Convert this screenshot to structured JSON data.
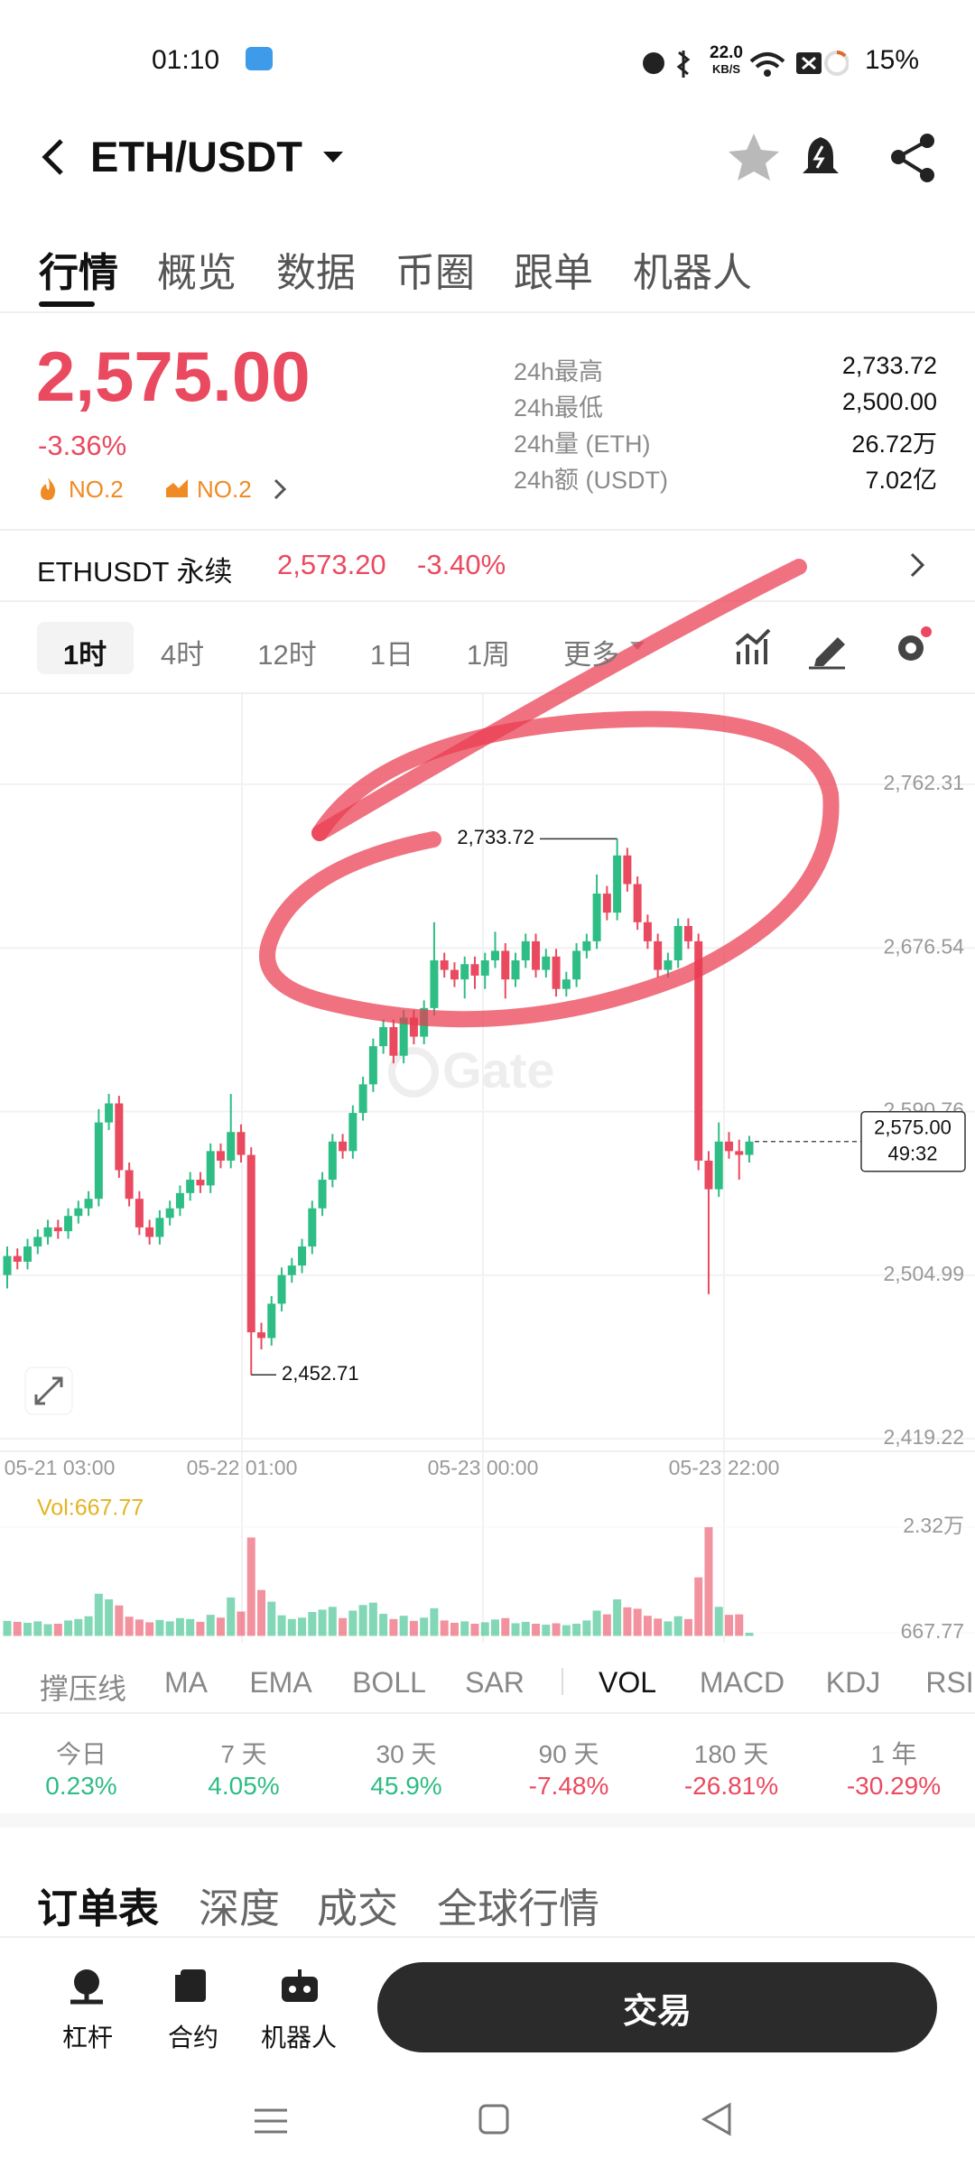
{
  "status_bar": {
    "time": "01:10",
    "net_speed": "22.0",
    "net_unit": "KB/S",
    "battery": "15%"
  },
  "header": {
    "pair": "ETH/USDT"
  },
  "tabs": [
    "行情",
    "概览",
    "数据",
    "币圈",
    "跟单",
    "机器人"
  ],
  "price": {
    "last": "2,575.00",
    "change": "-3.36%",
    "ranks": [
      "NO.2",
      "NO.2"
    ]
  },
  "stats": [
    {
      "label": "24h最高",
      "value": "2,733.72"
    },
    {
      "label": "24h最低",
      "value": "2,500.00"
    },
    {
      "label": "24h量 (ETH)",
      "value": "26.72万"
    },
    {
      "label": "24h额 (USDT)",
      "value": "7.02亿"
    }
  ],
  "perpetual": {
    "name": "ETHUSDT 永续",
    "price": "2,573.20",
    "change": "-3.40%"
  },
  "intervals": [
    "1时",
    "4时",
    "12时",
    "1日",
    "1周",
    "更多"
  ],
  "chart": {
    "type": "candlestick",
    "watermark": "Gate",
    "up_color": "#2ebd85",
    "down_color": "#ea4a5f",
    "ylim": [
      2412.6,
      2809.6
    ],
    "yticks": [
      {
        "value": 2762.31,
        "label": "2,762.31"
      },
      {
        "value": 2676.54,
        "label": "2,676.54"
      },
      {
        "value": 2590.76,
        "label": "2,590.76"
      },
      {
        "value": 2504.99,
        "label": "2,504.99"
      },
      {
        "value": 2419.22,
        "label": "2,419.22"
      }
    ],
    "xlabels": [
      "05-21 03:00",
      "05-22 01:00",
      "05-23 00:00",
      "05-23 22:00"
    ],
    "high_label": {
      "value": 2733.72,
      "label": "2,733.72"
    },
    "low_label": {
      "value": 2452.71,
      "label": "2,452.71"
    },
    "last_price": {
      "value": 2575,
      "label": "2,575.00"
    },
    "countdown": "49:32",
    "ohlc": [
      [
        2505,
        2520,
        2498,
        2515
      ],
      [
        2515,
        2519,
        2508,
        2512
      ],
      [
        2512,
        2524,
        2508,
        2520
      ],
      [
        2520,
        2529,
        2516,
        2525
      ],
      [
        2525,
        2534,
        2521,
        2530
      ],
      [
        2530,
        2534,
        2524,
        2528
      ],
      [
        2528,
        2540,
        2524,
        2536
      ],
      [
        2536,
        2544,
        2532,
        2540
      ],
      [
        2540,
        2549,
        2536,
        2545
      ],
      [
        2545,
        2592,
        2541,
        2585
      ],
      [
        2585,
        2600,
        2581,
        2595
      ],
      [
        2595,
        2599,
        2556,
        2560
      ],
      [
        2560,
        2564,
        2541,
        2545
      ],
      [
        2545,
        2549,
        2526,
        2530
      ],
      [
        2530,
        2534,
        2521,
        2525
      ],
      [
        2525,
        2539,
        2521,
        2535
      ],
      [
        2535,
        2544,
        2531,
        2540
      ],
      [
        2540,
        2552,
        2536,
        2548
      ],
      [
        2548,
        2559,
        2544,
        2555
      ],
      [
        2555,
        2559,
        2548,
        2552
      ],
      [
        2552,
        2574,
        2548,
        2570
      ],
      [
        2570,
        2574,
        2561,
        2565
      ],
      [
        2565,
        2600,
        2561,
        2580
      ],
      [
        2580,
        2584,
        2564,
        2568
      ],
      [
        2568,
        2572,
        2452.71,
        2475
      ],
      [
        2475,
        2480,
        2466,
        2472
      ],
      [
        2472,
        2494,
        2468,
        2490
      ],
      [
        2490,
        2509,
        2486,
        2505
      ],
      [
        2505,
        2514,
        2501,
        2510
      ],
      [
        2510,
        2524,
        2506,
        2520
      ],
      [
        2520,
        2544,
        2516,
        2540
      ],
      [
        2540,
        2559,
        2536,
        2555
      ],
      [
        2555,
        2579,
        2551,
        2575
      ],
      [
        2575,
        2579,
        2566,
        2570
      ],
      [
        2570,
        2594,
        2566,
        2590
      ],
      [
        2590,
        2609,
        2586,
        2605
      ],
      [
        2605,
        2629,
        2601,
        2625
      ],
      [
        2625,
        2639,
        2621,
        2635
      ],
      [
        2635,
        2639,
        2616,
        2620
      ],
      [
        2620,
        2644,
        2616,
        2640
      ],
      [
        2640,
        2644,
        2626,
        2630
      ],
      [
        2630,
        2649,
        2626,
        2645
      ],
      [
        2645,
        2690,
        2641,
        2670
      ],
      [
        2670,
        2674,
        2661,
        2665
      ],
      [
        2665,
        2669,
        2656,
        2660
      ],
      [
        2660,
        2672,
        2650,
        2668
      ],
      [
        2668,
        2672,
        2655,
        2662
      ],
      [
        2662,
        2674,
        2655,
        2670
      ],
      [
        2670,
        2685,
        2666,
        2675
      ],
      [
        2675,
        2679,
        2650,
        2660
      ],
      [
        2660,
        2674,
        2656,
        2670
      ],
      [
        2670,
        2684,
        2666,
        2680
      ],
      [
        2680,
        2684,
        2661,
        2665
      ],
      [
        2665,
        2676,
        2661,
        2672
      ],
      [
        2672,
        2676,
        2651,
        2655
      ],
      [
        2655,
        2664,
        2651,
        2660
      ],
      [
        2660,
        2679,
        2656,
        2675
      ],
      [
        2675,
        2684,
        2671,
        2680
      ],
      [
        2680,
        2715,
        2676,
        2705
      ],
      [
        2705,
        2709,
        2691,
        2695
      ],
      [
        2695,
        2733.72,
        2691,
        2725
      ],
      [
        2725,
        2729,
        2706,
        2710
      ],
      [
        2710,
        2714,
        2686,
        2690
      ],
      [
        2690,
        2694,
        2676,
        2680
      ],
      [
        2680,
        2684,
        2661,
        2665
      ],
      [
        2665,
        2674,
        2661,
        2670
      ],
      [
        2670,
        2692,
        2666,
        2688
      ],
      [
        2688,
        2692,
        2676,
        2680
      ],
      [
        2680,
        2684,
        2560,
        2565
      ],
      [
        2565,
        2570,
        2495,
        2550
      ],
      [
        2550,
        2585,
        2546,
        2575
      ],
      [
        2575,
        2580,
        2566,
        2570
      ],
      [
        2570,
        2576,
        2555,
        2568
      ],
      [
        2568,
        2578,
        2564,
        2575
      ]
    ],
    "volume": {
      "label": "Vol:667.77",
      "ylim": [
        0,
        26100
      ],
      "yticks": [
        {
          "value": 23200,
          "label": "2.32万"
        },
        667.77
      ],
      "values": [
        3200,
        3000,
        2800,
        3100,
        2500,
        2600,
        3300,
        3600,
        4200,
        9000,
        7800,
        6500,
        4100,
        3500,
        2900,
        3400,
        3100,
        3800,
        3600,
        3000,
        4500,
        3900,
        8200,
        5200,
        21000,
        9800,
        7300,
        4400,
        3600,
        3900,
        5100,
        5600,
        6200,
        3800,
        5400,
        6600,
        7100,
        4700,
        3600,
        4300,
        3200,
        3900,
        5900,
        3300,
        2800,
        3100,
        2600,
        2900,
        3500,
        3800,
        2700,
        3000,
        2600,
        2400,
        2700,
        2300,
        2600,
        3300,
        5400,
        4600,
        7800,
        6100,
        5800,
        4300,
        3700,
        3100,
        4200,
        3600,
        12500,
        23200,
        6200,
        4500,
        4600,
        667.77
      ]
    }
  },
  "indicators": [
    "撑压线",
    "MA",
    "EMA",
    "BOLL",
    "SAR",
    "VOL",
    "MACD",
    "KDJ",
    "RSI"
  ],
  "performance": [
    {
      "period": "今日",
      "change": "0.23%"
    },
    {
      "period": "7 天",
      "change": "4.05%"
    },
    {
      "period": "30 天",
      "change": "45.9%"
    },
    {
      "period": "90 天",
      "change": "-7.48%"
    },
    {
      "period": "180 天",
      "change": "-26.81%"
    },
    {
      "period": "1 年",
      "change": "-30.29%"
    }
  ],
  "order_tabs": [
    "订单表",
    "深度",
    "成交",
    "全球行情"
  ],
  "bottom_nav": [
    "杠杆",
    "合约",
    "机器人"
  ],
  "trade_button": "交易"
}
